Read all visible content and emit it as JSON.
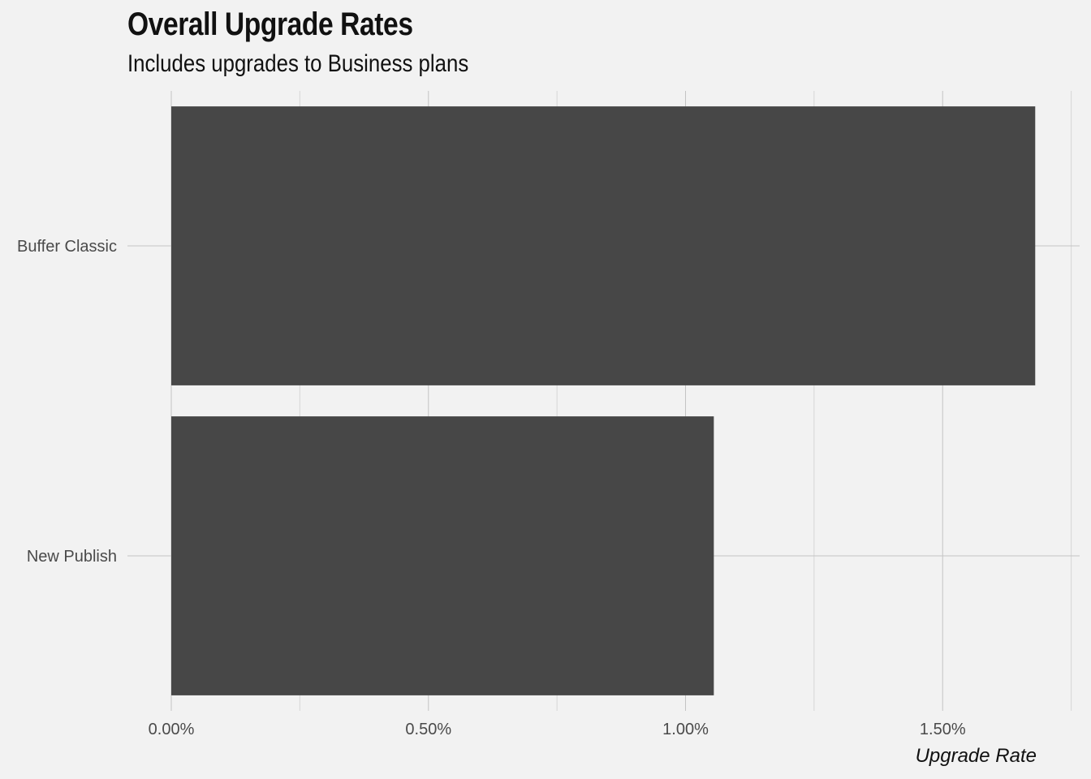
{
  "chart_data": {
    "type": "bar",
    "orientation": "horizontal",
    "title": "Overall Upgrade Rates",
    "subtitle": "Includes upgrades to Business plans",
    "xlabel": "Upgrade Rate",
    "ylabel": "",
    "categories": [
      "Buffer Classic",
      "New Publish"
    ],
    "values": [
      0.0168,
      0.01055
    ],
    "xlim": [
      0,
      0.0175
    ],
    "x_ticks": [
      0,
      0.005,
      0.01,
      0.015
    ],
    "x_tick_labels": [
      "0.00%",
      "0.50%",
      "1.00%",
      "1.50%"
    ],
    "grid": true,
    "legend": "none",
    "colors": {
      "background": "#f2f2f2",
      "bar": "#474747",
      "grid_major": "#c4c4c4",
      "grid_minor": "#d6d6d6"
    }
  }
}
